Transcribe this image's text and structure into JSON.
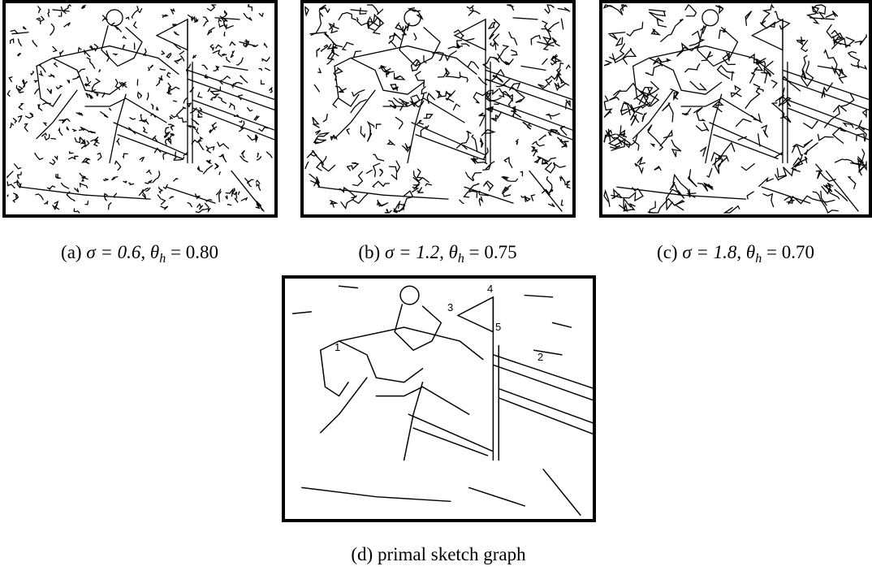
{
  "figure": {
    "panels": [
      {
        "label": "(a)",
        "math": "σ = 0.6, θ",
        "sub": "h",
        "rest": " = 0.80"
      },
      {
        "label": "(b)",
        "math": "σ = 1.2, θ",
        "sub": "h",
        "rest": " = 0.75"
      },
      {
        "label": "(c)",
        "math": "σ = 1.8, θ",
        "sub": "h",
        "rest": " = 0.70"
      },
      {
        "label": "(d)",
        "text": "primal sketch graph"
      }
    ],
    "sketch_labels": [
      "1",
      "2",
      "3",
      "4",
      "5"
    ]
  }
}
